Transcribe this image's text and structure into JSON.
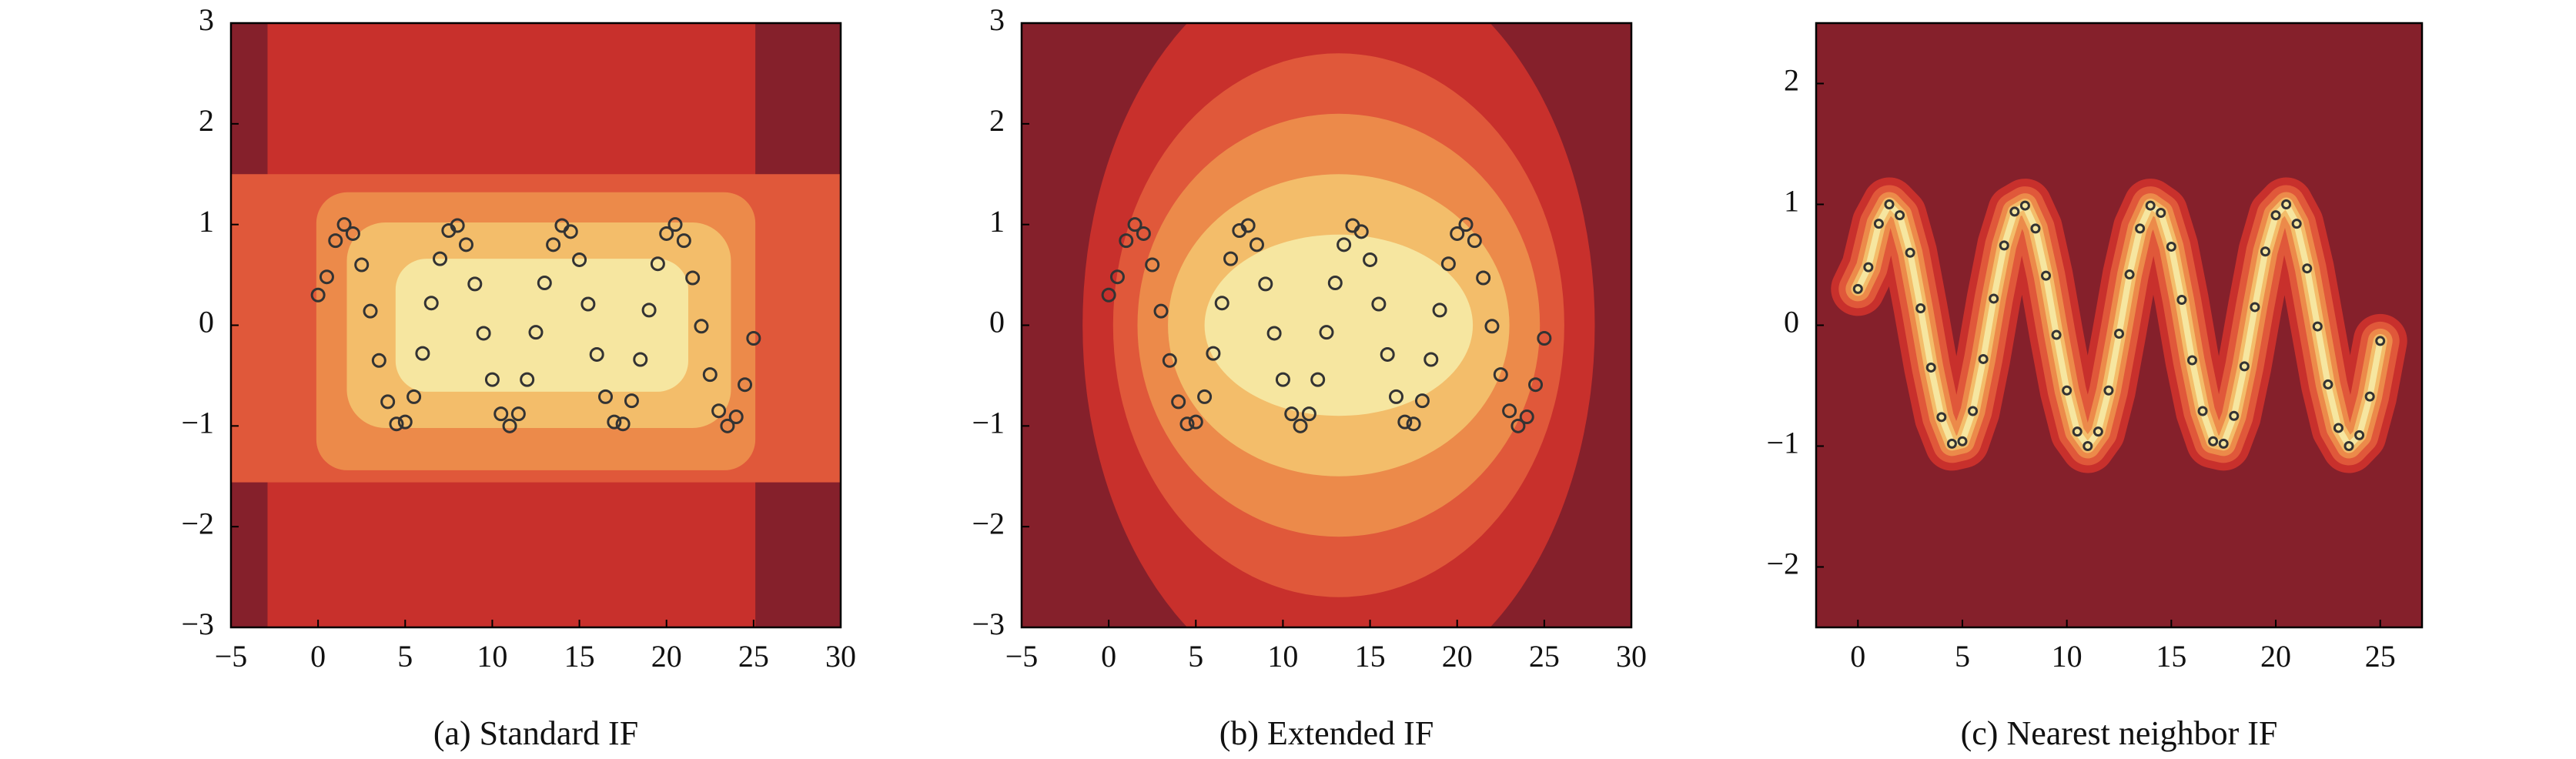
{
  "chart_data": [
    {
      "type": "scatter",
      "caption": "(a) Standard IF",
      "color": "#333333",
      "xlim": [
        -5,
        30
      ],
      "xticks": [
        {
          "value": -5,
          "label": "−5"
        },
        0,
        5,
        10,
        15,
        20,
        25,
        30
      ],
      "ylim": [
        -3,
        3
      ],
      "yticks": [
        {
          "value": -3,
          "label": "−3"
        },
        {
          "value": -2,
          "label": "−2"
        },
        {
          "value": -1,
          "label": "−1"
        },
        0,
        1,
        2,
        3
      ],
      "x": [
        0,
        0.5,
        1,
        1.5,
        2,
        2.5,
        3,
        3.5,
        4,
        4.5,
        5,
        5.5,
        6,
        6.5,
        7,
        7.5,
        8,
        8.5,
        9,
        9.5,
        10,
        10.5,
        11,
        11.5,
        12,
        12.5,
        13,
        13.5,
        14,
        14.5,
        15,
        15.5,
        16,
        16.5,
        17,
        17.5,
        18,
        18.5,
        19,
        19.5,
        20,
        20.5,
        21,
        21.5,
        22,
        22.5,
        23,
        23.5,
        24,
        24.5,
        25
      ],
      "values": [
        0.3,
        0.48,
        0.84,
        1.0,
        0.91,
        0.6,
        0.14,
        -0.35,
        -0.76,
        -0.98,
        -0.96,
        -0.71,
        -0.28,
        0.22,
        0.66,
        0.94,
        0.99,
        0.8,
        0.41,
        -0.08,
        -0.54,
        -0.88,
        -1.0,
        -0.88,
        -0.54,
        -0.07,
        0.42,
        0.8,
        0.99,
        0.93,
        0.65,
        0.21,
        -0.29,
        -0.71,
        -0.96,
        -0.98,
        -0.75,
        -0.34,
        0.15,
        0.61,
        0.91,
        1.0,
        0.84,
        0.47,
        -0.01,
        -0.49,
        -0.85,
        -1.0,
        -0.91,
        -0.59,
        -0.13
      ]
    },
    {
      "type": "scatter",
      "caption": "(b) Extended IF",
      "color": "#333333",
      "xlim": [
        -5,
        30
      ],
      "xticks": [
        {
          "value": -5,
          "label": "−5"
        },
        0,
        5,
        10,
        15,
        20,
        25,
        30
      ],
      "ylim": [
        -3,
        3
      ],
      "yticks": [
        {
          "value": -3,
          "label": "−3"
        },
        {
          "value": -2,
          "label": "−2"
        },
        {
          "value": -1,
          "label": "−1"
        },
        0,
        1,
        2,
        3
      ],
      "x": [
        0,
        0.5,
        1,
        1.5,
        2,
        2.5,
        3,
        3.5,
        4,
        4.5,
        5,
        5.5,
        6,
        6.5,
        7,
        7.5,
        8,
        8.5,
        9,
        9.5,
        10,
        10.5,
        11,
        11.5,
        12,
        12.5,
        13,
        13.5,
        14,
        14.5,
        15,
        15.5,
        16,
        16.5,
        17,
        17.5,
        18,
        18.5,
        19,
        19.5,
        20,
        20.5,
        21,
        21.5,
        22,
        22.5,
        23,
        23.5,
        24,
        24.5,
        25
      ],
      "values": [
        0.3,
        0.48,
        0.84,
        1.0,
        0.91,
        0.6,
        0.14,
        -0.35,
        -0.76,
        -0.98,
        -0.96,
        -0.71,
        -0.28,
        0.22,
        0.66,
        0.94,
        0.99,
        0.8,
        0.41,
        -0.08,
        -0.54,
        -0.88,
        -1.0,
        -0.88,
        -0.54,
        -0.07,
        0.42,
        0.8,
        0.99,
        0.93,
        0.65,
        0.21,
        -0.29,
        -0.71,
        -0.96,
        -0.98,
        -0.75,
        -0.34,
        0.15,
        0.61,
        0.91,
        1.0,
        0.84,
        0.47,
        -0.01,
        -0.49,
        -0.85,
        -1.0,
        -0.91,
        -0.59,
        -0.13
      ]
    },
    {
      "type": "scatter",
      "caption": "(c) Nearest neighbor IF",
      "color": "#333333",
      "xlim": [
        -2,
        27
      ],
      "xticks": [
        0,
        5,
        10,
        15,
        20,
        25
      ],
      "ylim": [
        -2.5,
        2.5
      ],
      "yticks": [
        {
          "value": -2,
          "label": "−2"
        },
        {
          "value": -1,
          "label": "−1"
        },
        0,
        1,
        2
      ],
      "x": [
        0,
        0.5,
        1,
        1.5,
        2,
        2.5,
        3,
        3.5,
        4,
        4.5,
        5,
        5.5,
        6,
        6.5,
        7,
        7.5,
        8,
        8.5,
        9,
        9.5,
        10,
        10.5,
        11,
        11.5,
        12,
        12.5,
        13,
        13.5,
        14,
        14.5,
        15,
        15.5,
        16,
        16.5,
        17,
        17.5,
        18,
        18.5,
        19,
        19.5,
        20,
        20.5,
        21,
        21.5,
        22,
        22.5,
        23,
        23.5,
        24,
        24.5,
        25
      ],
      "values": [
        0.3,
        0.48,
        0.84,
        1.0,
        0.91,
        0.6,
        0.14,
        -0.35,
        -0.76,
        -0.98,
        -0.96,
        -0.71,
        -0.28,
        0.22,
        0.66,
        0.94,
        0.99,
        0.8,
        0.41,
        -0.08,
        -0.54,
        -0.88,
        -1.0,
        -0.88,
        -0.54,
        -0.07,
        0.42,
        0.8,
        0.99,
        0.93,
        0.65,
        0.21,
        -0.29,
        -0.71,
        -0.96,
        -0.98,
        -0.75,
        -0.34,
        0.15,
        0.61,
        0.91,
        1.0,
        0.84,
        0.47,
        -0.01,
        -0.49,
        -0.85,
        -1.0,
        -0.91,
        -0.59,
        -0.13
      ]
    }
  ]
}
